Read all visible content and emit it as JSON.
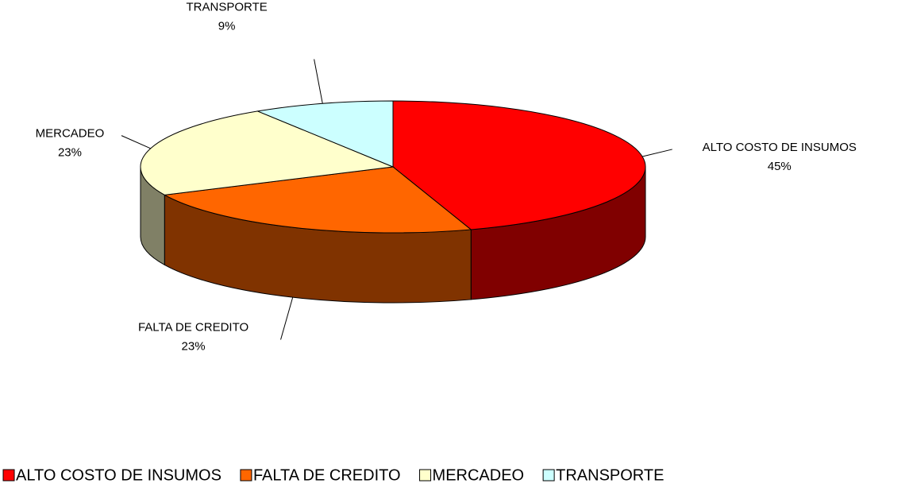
{
  "chart_data": {
    "type": "pie3d",
    "categories": [
      "ALTO COSTO DE INSUMOS",
      "FALTA DE CREDITO",
      "MERCADEO",
      "TRANSPORTE"
    ],
    "values": [
      45,
      23,
      23,
      9
    ],
    "value_labels": [
      "45%",
      "23%",
      "23%",
      "9%"
    ],
    "colors": [
      "#ff0000",
      "#ff6600",
      "#ffffcc",
      "#ccffff"
    ],
    "legend": "bottom"
  }
}
